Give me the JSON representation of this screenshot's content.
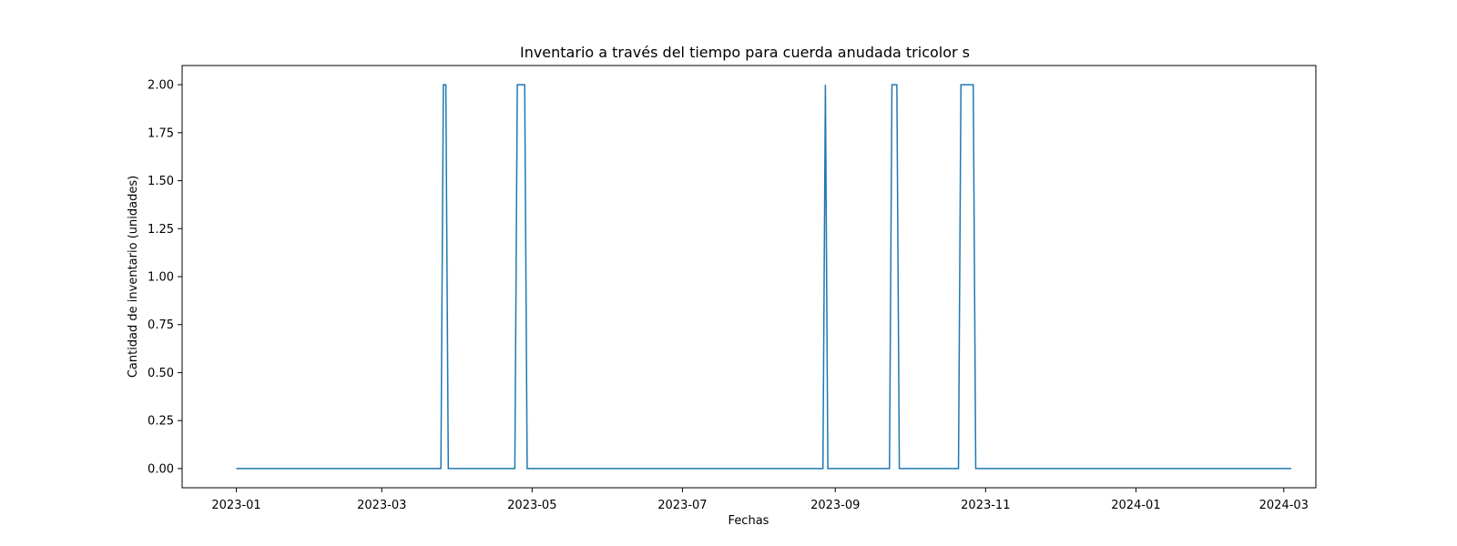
{
  "chart_data": {
    "type": "line",
    "title": "Inventario a través del tiempo para cuerda anudada tricolor s",
    "xlabel": "Fechas",
    "ylabel": "Cantidad de inventario (unidades)",
    "x_tick_labels": [
      "2023-01",
      "2023-03",
      "2023-05",
      "2023-07",
      "2023-09",
      "2023-11",
      "2024-01",
      "2024-03"
    ],
    "y_tick_labels": [
      "0.00",
      "0.25",
      "0.50",
      "0.75",
      "1.00",
      "1.25",
      "1.50",
      "1.75",
      "2.00"
    ],
    "x_ticks": [
      "2023-01-01",
      "2023-03-01",
      "2023-05-01",
      "2023-07-01",
      "2023-09-01",
      "2023-11-01",
      "2024-01-01",
      "2024-03-01"
    ],
    "y_ticks": [
      0,
      0.25,
      0.5,
      0.75,
      1.0,
      1.25,
      1.5,
      1.75,
      2.0
    ],
    "xlim": [
      "2022-12-10",
      "2024-03-14"
    ],
    "ylim": [
      -0.1,
      2.1
    ],
    "grid": false,
    "line_color": "#1f77b4",
    "series": [
      {
        "x": [
          "2023-01-01",
          "2023-03-25",
          "2023-03-26",
          "2023-03-27",
          "2023-03-28",
          "2023-04-24",
          "2023-04-25",
          "2023-04-28",
          "2023-04-29",
          "2023-08-27",
          "2023-08-28",
          "2023-08-29",
          "2023-09-23",
          "2023-09-24",
          "2023-09-26",
          "2023-09-27",
          "2023-10-21",
          "2023-10-22",
          "2023-10-27",
          "2023-10-28",
          "2024-03-04"
        ],
        "y": [
          0,
          0,
          2,
          2,
          0,
          0,
          2,
          2,
          0,
          0,
          2,
          0,
          0,
          2,
          2,
          0,
          0,
          2,
          2,
          0,
          0
        ]
      }
    ]
  }
}
